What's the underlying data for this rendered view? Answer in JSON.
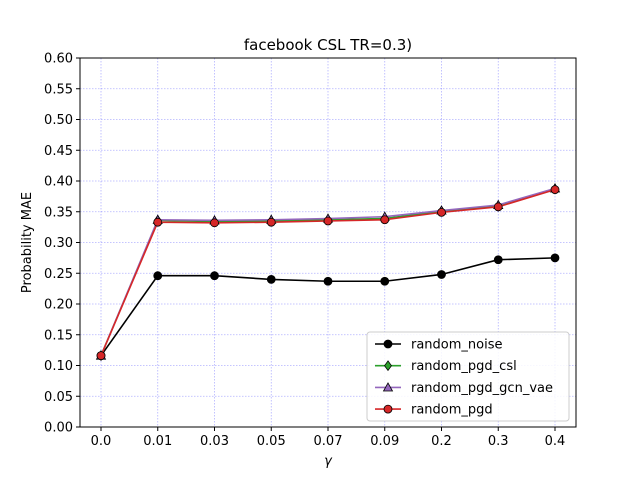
{
  "chart_data": {
    "type": "line",
    "title": "facebook CSL TR=0.3)",
    "xlabel": "γ",
    "ylabel": "Probability MAE",
    "categories": [
      "0.0",
      "0.01",
      "0.03",
      "0.05",
      "0.07",
      "0.09",
      "0.2",
      "0.3",
      "0.4"
    ],
    "ylim": [
      0,
      0.6
    ],
    "yticks": [
      "0.00",
      "0.05",
      "0.10",
      "0.15",
      "0.20",
      "0.25",
      "0.30",
      "0.35",
      "0.40",
      "0.45",
      "0.50",
      "0.55",
      "0.60"
    ],
    "grid": true,
    "legend_position": "lower-right",
    "series": [
      {
        "name": "random_noise",
        "color": "#000000",
        "marker": "circle",
        "values": [
          0.116,
          0.246,
          0.246,
          0.24,
          0.237,
          0.237,
          0.248,
          0.272,
          0.275
        ]
      },
      {
        "name": "random_pgd_csl",
        "color": "#2ca02c",
        "marker": "diamond",
        "values": [
          0.116,
          0.336,
          0.334,
          0.335,
          0.337,
          0.339,
          0.351,
          0.359,
          0.387
        ]
      },
      {
        "name": "random_pgd_gcn_vae",
        "color": "#9467bd",
        "marker": "triangle",
        "values": [
          0.116,
          0.337,
          0.336,
          0.337,
          0.339,
          0.342,
          0.352,
          0.361,
          0.388
        ]
      },
      {
        "name": "random_pgd",
        "color": "#d62728",
        "marker": "circle",
        "values": [
          0.116,
          0.333,
          0.332,
          0.333,
          0.335,
          0.337,
          0.349,
          0.358,
          0.386
        ]
      }
    ]
  }
}
